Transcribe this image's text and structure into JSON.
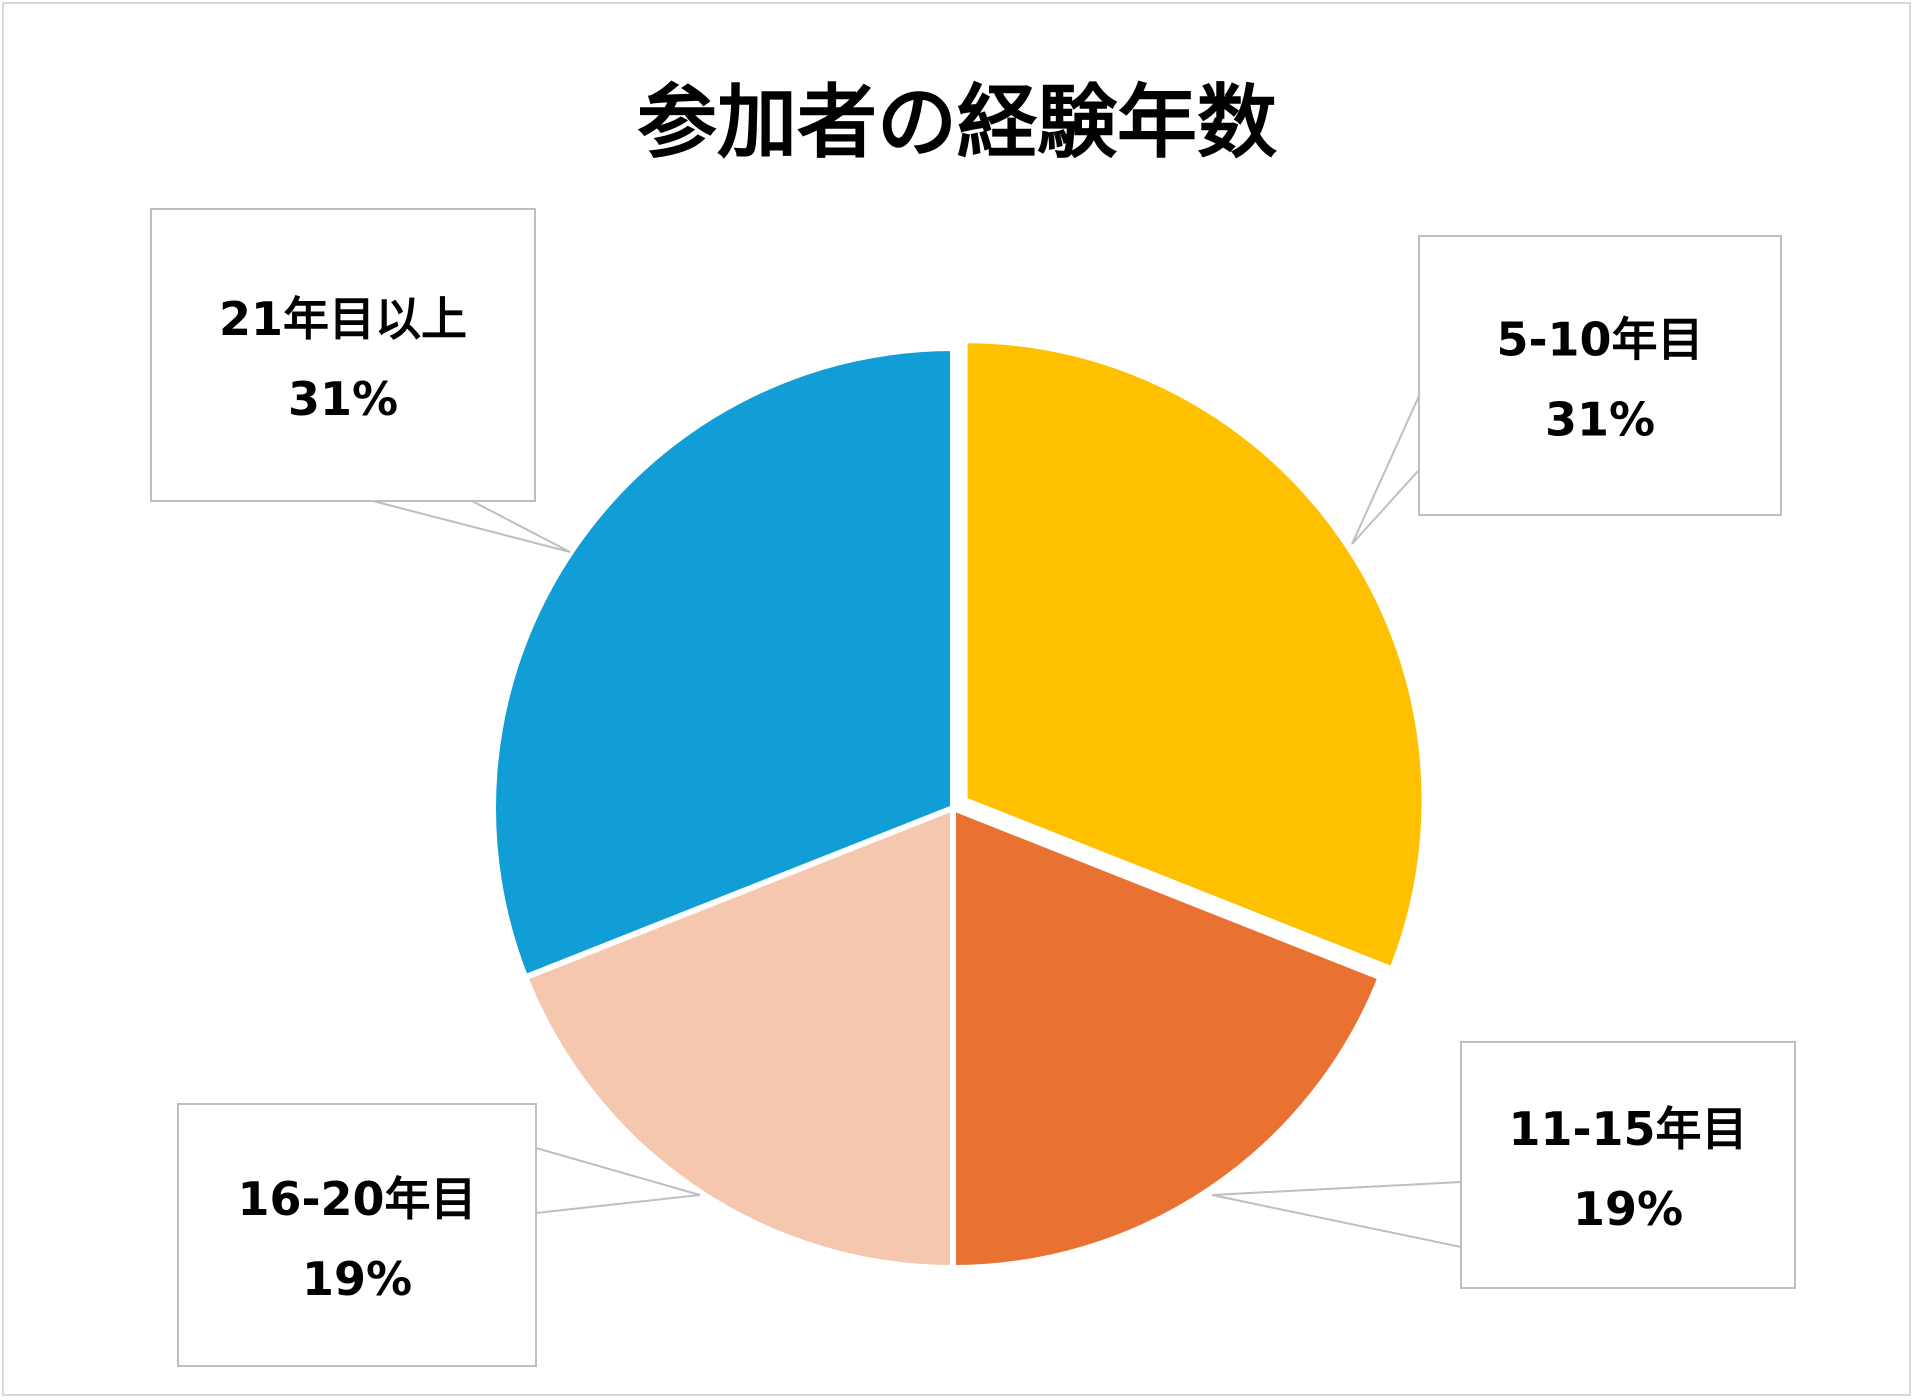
{
  "chart_data": {
    "type": "pie",
    "title": "参加者の経験年数",
    "slices": [
      {
        "label": "5-10年目",
        "value": 31,
        "percent_label": "31%",
        "color": "#FFC000"
      },
      {
        "label": "11-15年目",
        "value": 19,
        "percent_label": "19%",
        "color": "#E97132"
      },
      {
        "label": "16-20年目",
        "value": 19,
        "percent_label": "19%",
        "color": "#F5C7AE"
      },
      {
        "label": "21年目以上",
        "value": 31,
        "percent_label": "31%",
        "color": "#119ED6"
      }
    ],
    "start_angle": "12 o'clock",
    "direction": "clockwise",
    "exploded_slice": "5-10年目",
    "label_style": "callout boxes with leader lines",
    "legend": "none"
  }
}
